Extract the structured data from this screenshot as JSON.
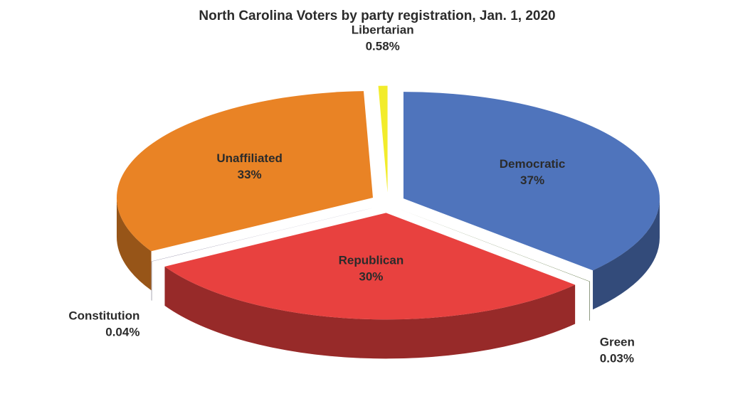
{
  "chart_data": {
    "type": "pie",
    "title": "North Carolina Voters by party registration, Jan. 1, 2020",
    "categories": [
      "Democratic",
      "Green",
      "Republican",
      "Constitution",
      "Unaffiliated",
      "Libertarian"
    ],
    "values": [
      37,
      0.03,
      30,
      0.04,
      33,
      0.58
    ],
    "value_labels": [
      "37%",
      "0.03%",
      "30%",
      "0.04%",
      "33%",
      "0.58%"
    ],
    "colors": [
      "#4f74bc",
      "#3f5a1e",
      "#e8413f",
      "#8a85a0",
      "#e98325",
      "#f2ec2b"
    ]
  }
}
